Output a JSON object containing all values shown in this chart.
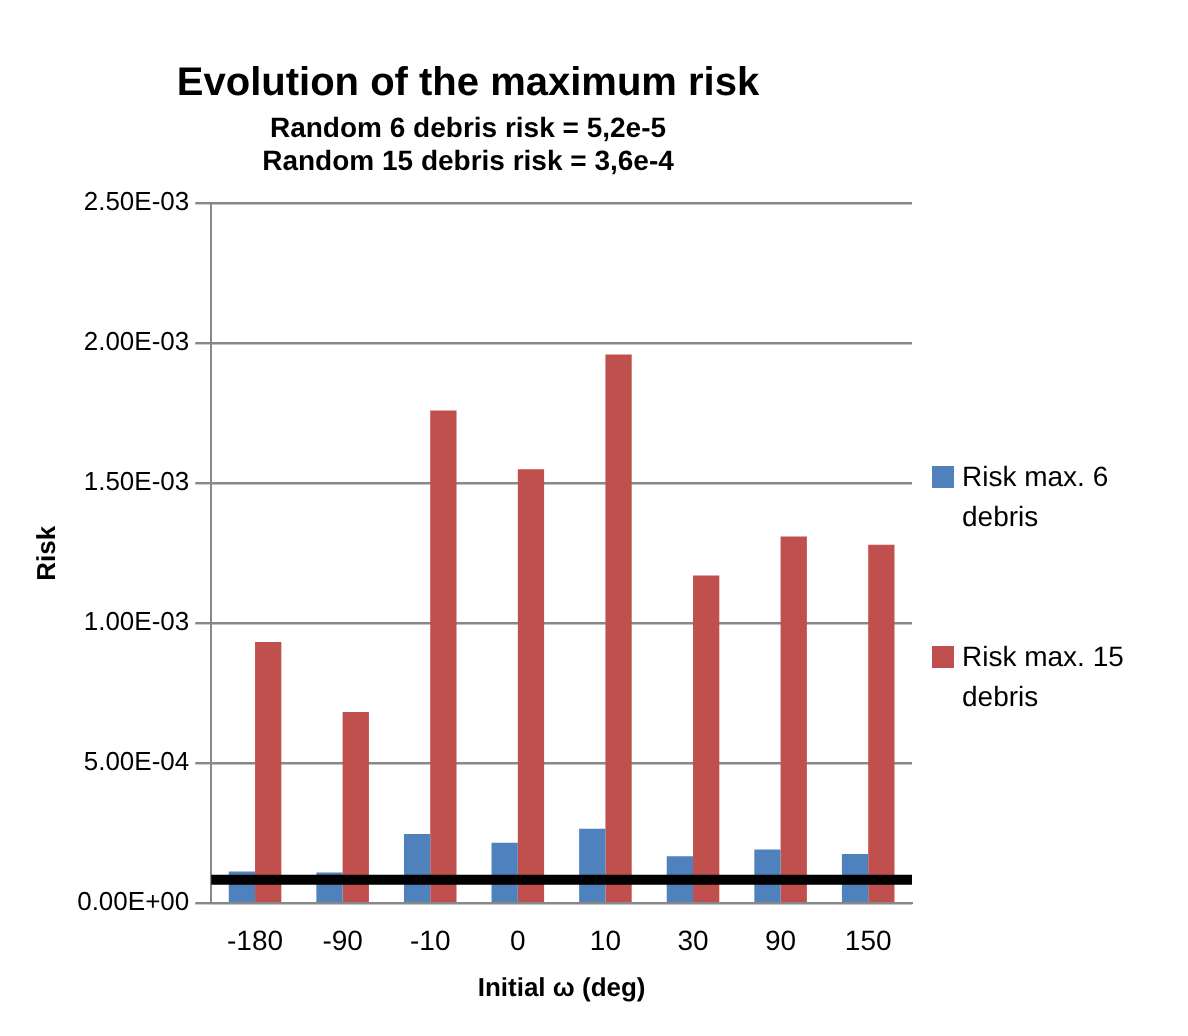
{
  "chart_data": {
    "type": "bar",
    "title": "Evolution of the maximum risk",
    "subtitle": "Random 6 debris risk = 5,2e-5\nRandom 15 debris risk = 3,6e-4",
    "xlabel": "Initial ω (deg)",
    "ylabel": "Risk",
    "categories": [
      "-180",
      "-90",
      "-10",
      "0",
      "10",
      "30",
      "90",
      "150"
    ],
    "series": [
      {
        "name": "Risk max. 6 debris",
        "color": "#4f81bd",
        "values": [
          0.000113,
          0.00011,
          0.000247,
          0.000216,
          0.000266,
          0.000168,
          0.000192,
          0.000176
        ]
      },
      {
        "name": "Risk max. 15 debris",
        "color": "#c0504d",
        "values": [
          0.000933,
          0.000683,
          0.00176,
          0.00155,
          0.00196,
          0.00117,
          0.00131,
          0.00128
        ]
      }
    ],
    "ylim": [
      0,
      0.0025
    ],
    "yticks": [
      {
        "value": 0,
        "label": "0.00E+00"
      },
      {
        "value": 0.0005,
        "label": "5.00E-04"
      },
      {
        "value": 0.001,
        "label": "1.00E-03"
      },
      {
        "value": 0.0015,
        "label": "1.50E-03"
      },
      {
        "value": 0.002,
        "label": "2.00E-03"
      },
      {
        "value": 0.0025,
        "label": "2.50E-03"
      }
    ],
    "ref_lines": [
      {
        "axis": "y",
        "value": 8.4e-05,
        "color": "#000000"
      }
    ],
    "grid": "y",
    "legend": "right"
  }
}
